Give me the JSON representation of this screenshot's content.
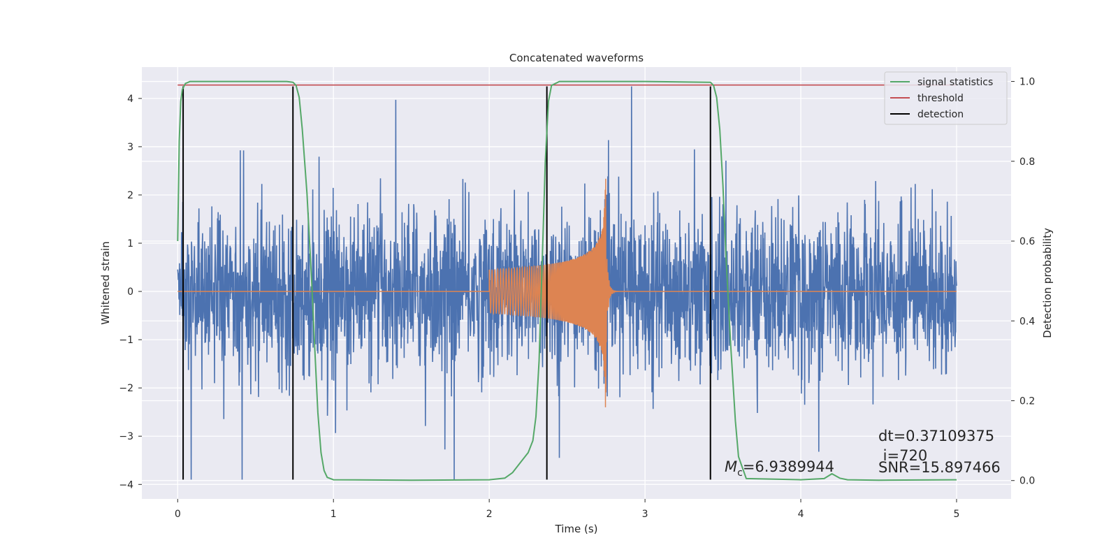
{
  "chart_data": {
    "type": "line",
    "title": "Concatenated waveforms",
    "xlabel": "Time (s)",
    "ylabel": "Whitened strain",
    "y2label": "Detection probability",
    "xlim": [
      -0.23,
      5.35
    ],
    "ylim": [
      -4.3,
      4.65
    ],
    "y2lim": [
      -0.046,
      1.036
    ],
    "xticks": [
      0,
      1,
      2,
      3,
      4,
      5
    ],
    "yticks": [
      -4,
      -3,
      -2,
      -1,
      0,
      1,
      2,
      3,
      4
    ],
    "y2ticks": [
      0.0,
      0.2,
      0.4,
      0.6,
      0.8,
      1.0
    ],
    "ytick_labels": [
      "−4",
      "−3",
      "−2",
      "−1",
      "0",
      "1",
      "2",
      "3",
      "4"
    ],
    "y2tick_labels": [
      "0.0",
      "0.2",
      "0.4",
      "0.6",
      "0.8",
      "1.0"
    ],
    "grid": true,
    "legend_position": "top-right",
    "colors": {
      "background": "#eaeaf2",
      "strain": "#4c72b0",
      "injection": "#dd8452",
      "signal_statistics": "#55a868",
      "threshold": "#c44e52",
      "detection": "#000000",
      "grid": "#ffffff"
    },
    "series": [
      {
        "name": "whitened strain (noise)",
        "kind": "noise",
        "x_range": [
          0,
          5
        ],
        "amplitude_std": 0.82,
        "peak_range": [
          -3.9,
          4.25
        ]
      },
      {
        "name": "injected waveform",
        "kind": "chirp",
        "x_range": [
          2.0,
          2.76
        ],
        "amplitude_start": 0.45,
        "amplitude_peak": 2.5,
        "merger_time": 2.75
      },
      {
        "name": "signal statistics",
        "axis": "right",
        "x": [
          0,
          0.01,
          0.02,
          0.03,
          0.05,
          0.08,
          0.12,
          0.2,
          0.5,
          0.7,
          0.74,
          0.76,
          0.78,
          0.8,
          0.83,
          0.86,
          0.88,
          0.9,
          0.92,
          0.94,
          0.96,
          1.0,
          1.5,
          2.0,
          2.1,
          2.15,
          2.2,
          2.25,
          2.28,
          2.3,
          2.32,
          2.34,
          2.36,
          2.38,
          2.4,
          2.45,
          3.0,
          3.42,
          3.44,
          3.46,
          3.48,
          3.5,
          3.52,
          3.55,
          3.58,
          3.6,
          3.65,
          4.0,
          4.15,
          4.2,
          4.25,
          4.3,
          4.5,
          5.0
        ],
        "values": [
          0.6,
          0.85,
          0.95,
          0.98,
          0.995,
          1.0,
          1.0,
          1.0,
          1.0,
          1.0,
          0.998,
          0.99,
          0.96,
          0.88,
          0.72,
          0.5,
          0.33,
          0.17,
          0.07,
          0.025,
          0.008,
          0.002,
          0.001,
          0.002,
          0.006,
          0.02,
          0.045,
          0.07,
          0.1,
          0.16,
          0.3,
          0.55,
          0.8,
          0.95,
          0.99,
          1.0,
          1.0,
          0.998,
          0.99,
          0.96,
          0.88,
          0.74,
          0.56,
          0.34,
          0.15,
          0.06,
          0.005,
          0.002,
          0.005,
          0.017,
          0.006,
          0.002,
          0.001,
          0.002
        ]
      },
      {
        "name": "threshold",
        "axis": "right",
        "value": 0.991
      },
      {
        "name": "detection",
        "axis": "left",
        "x": [
          0.035,
          0.74,
          2.37,
          3.42
        ],
        "y_range": [
          -3.9,
          4.25
        ]
      }
    ],
    "legend": [
      {
        "label": "signal statistics",
        "color": "#55a868"
      },
      {
        "label": "threshold",
        "color": "#c44e52"
      },
      {
        "label": "detection",
        "color": "#000000"
      }
    ],
    "annotations": {
      "mc_symbol": "M",
      "mc_subscript": "c",
      "mc_value": "=6.9389944",
      "dt": "dt=0.37109375",
      "i": " i=720",
      "snr": "SNR=15.897466"
    }
  }
}
